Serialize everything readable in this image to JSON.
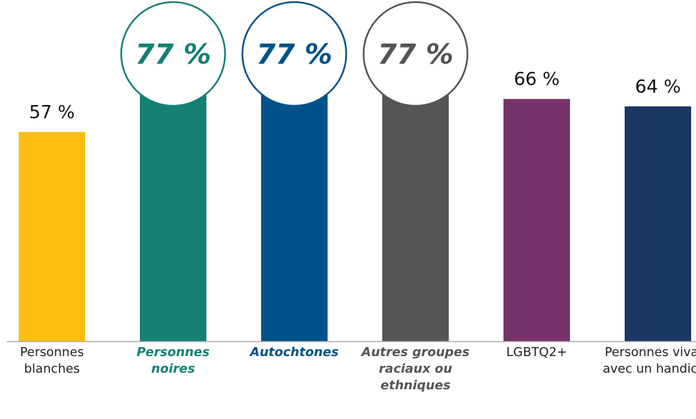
{
  "chart_data": {
    "type": "bar",
    "categories": [
      "Personnes blanches",
      "Personnes noires",
      "Autochtones",
      "Autres groupes raciaux ou ethniques",
      "LGBTQ2+",
      "Personnes vivant avec un handicap"
    ],
    "values": [
      57,
      77,
      77,
      77,
      66,
      64
    ],
    "value_labels": [
      "57 %",
      "77 %",
      "77 %",
      "77 %",
      "66 %",
      "64 %"
    ],
    "colors": [
      "#fbbd10",
      "#168075",
      "#00528a",
      "#555555",
      "#76336b",
      "#1b3764"
    ],
    "highlight": [
      false,
      true,
      true,
      true,
      false,
      false
    ]
  }
}
